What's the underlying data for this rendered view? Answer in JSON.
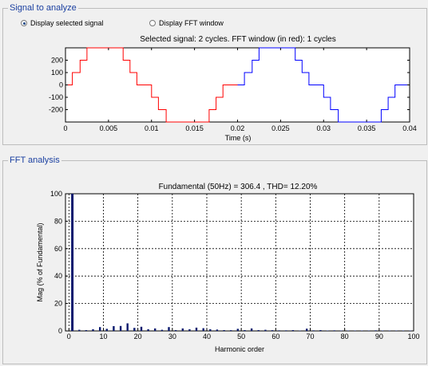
{
  "group_signal": {
    "title": "Signal to analyze"
  },
  "radios": [
    {
      "label": "Display selected signal",
      "selected": true
    },
    {
      "label": "Display FFT window",
      "selected": false
    }
  ],
  "signal_plot": {
    "title": "Selected signal: 2 cycles. FFT window (in red): 1 cycles",
    "xlabel": "Time (s)",
    "x_ticks": [
      "0",
      "0.005",
      "0.01",
      "0.015",
      "0.02",
      "0.025",
      "0.03",
      "0.035",
      "0.04"
    ],
    "y_ticks": [
      "200",
      "100",
      "0",
      "-100",
      "-200"
    ]
  },
  "group_fft": {
    "title": "FFT analysis"
  },
  "chart_data": [
    {
      "type": "line",
      "title": "Selected signal: 2 cycles. FFT window (in red): 1 cycles",
      "xlabel": "Time (s)",
      "ylabel": "",
      "xlim": [
        0,
        0.04
      ],
      "ylim": [
        -300,
        300
      ],
      "series": [
        {
          "color": "#ff0000",
          "x": [
            0,
            0.0008,
            0.0008,
            0.0017,
            0.0017,
            0.0025,
            0.0025,
            0.0033,
            0.0033,
            0.0067,
            0.0067,
            0.0075,
            0.0075,
            0.0083,
            0.0083,
            0.0092,
            0.0092,
            0.01,
            0.01,
            0.0108,
            0.0108,
            0.0117,
            0.0117,
            0.0125,
            0.0125,
            0.0133,
            0.0133,
            0.0167,
            0.0167,
            0.0175,
            0.0175,
            0.0183,
            0.0183,
            0.0192,
            0.0192,
            0.02
          ],
          "y": [
            0,
            0,
            100,
            100,
            200,
            200,
            300,
            300,
            300,
            300,
            200,
            200,
            100,
            100,
            0,
            0,
            0,
            0,
            -100,
            -100,
            -200,
            -200,
            -300,
            -300,
            -300,
            -300,
            -300,
            -300,
            -200,
            -200,
            -100,
            -100,
            0,
            0,
            0,
            0
          ]
        },
        {
          "color": "#0000ff",
          "x": [
            0.02,
            0.0208,
            0.0208,
            0.0217,
            0.0217,
            0.0225,
            0.0225,
            0.0233,
            0.0233,
            0.0267,
            0.0267,
            0.0275,
            0.0275,
            0.0283,
            0.0283,
            0.0292,
            0.0292,
            0.03,
            0.03,
            0.0308,
            0.0308,
            0.0317,
            0.0317,
            0.0325,
            0.0325,
            0.0333,
            0.0333,
            0.0367,
            0.0367,
            0.0375,
            0.0375,
            0.0383,
            0.0383,
            0.0392,
            0.0392,
            0.04
          ],
          "y": [
            0,
            0,
            100,
            100,
            200,
            200,
            300,
            300,
            300,
            300,
            200,
            200,
            100,
            100,
            0,
            0,
            0,
            0,
            -100,
            -100,
            -200,
            -200,
            -300,
            -300,
            -300,
            -300,
            -300,
            -300,
            -200,
            -200,
            -100,
            -100,
            0,
            0,
            0,
            0
          ]
        }
      ]
    },
    {
      "type": "bar",
      "title": "Fundamental (50Hz) = 306.4 , THD= 12.20%",
      "xlabel": "Harmonic order",
      "ylabel": "Mag (% of Fundamental)",
      "xlim": [
        -1,
        100
      ],
      "ylim": [
        0,
        100
      ],
      "grid": true,
      "x_ticks": [
        "0",
        "10",
        "20",
        "30",
        "40",
        "50",
        "60",
        "70",
        "80",
        "90",
        "100"
      ],
      "y_ticks": [
        "100",
        "80",
        "60",
        "40",
        "20",
        "0"
      ],
      "bar_color": "#0a1a6e",
      "x": [
        1,
        3,
        5,
        7,
        9,
        11,
        13,
        15,
        17,
        19,
        21,
        23,
        25,
        27,
        29,
        31,
        33,
        35,
        37,
        39,
        41,
        43,
        45,
        47,
        49,
        51,
        53,
        55,
        57,
        59,
        61,
        63,
        65,
        67,
        69,
        71,
        73,
        75,
        77,
        79,
        81,
        83,
        85,
        87,
        89,
        91,
        93,
        95,
        97,
        99
      ],
      "values": [
        100,
        0.8,
        0.6,
        1.2,
        2.8,
        1.5,
        3.5,
        3.6,
        5.5,
        2.2,
        3.0,
        1.2,
        1.8,
        0.8,
        2.8,
        0.6,
        1.8,
        1.2,
        2.4,
        2.0,
        1.2,
        1.0,
        0.6,
        0.5,
        1.5,
        0.6,
        1.8,
        0.6,
        0.8,
        0.5,
        0.4,
        0.4,
        0.6,
        0.3,
        1.6,
        0.4,
        0.6,
        0.3,
        0.4,
        0.3,
        0.3,
        0.3,
        0.3,
        0.3,
        0.4,
        0.3,
        0.3,
        0.3,
        0.3,
        0.3
      ]
    }
  ]
}
